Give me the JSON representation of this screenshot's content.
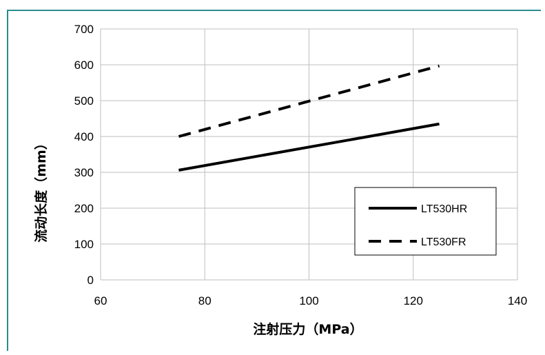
{
  "chart_data": {
    "type": "line",
    "xlabel": "注射压力（MPa）",
    "ylabel": "流动长度（mm）",
    "xlim": [
      60,
      140
    ],
    "ylim": [
      0,
      700
    ],
    "x_ticks": [
      "60",
      "80",
      "100",
      "120",
      "140"
    ],
    "y_ticks": [
      "0",
      "100",
      "200",
      "300",
      "400",
      "500",
      "600",
      "700"
    ],
    "grid": true,
    "legend": "bottom-right",
    "series": [
      {
        "name": "LT530HR",
        "style": "solid",
        "color": "#000000",
        "x": [
          75,
          125
        ],
        "y": [
          306,
          435
        ]
      },
      {
        "name": "LT530FR",
        "style": "dashed",
        "color": "#000000",
        "x": [
          75,
          125
        ],
        "y": [
          400,
          597
        ]
      }
    ]
  },
  "colors": {
    "frame_border": "#2a8c8c",
    "grid": "#bfbfbf"
  }
}
